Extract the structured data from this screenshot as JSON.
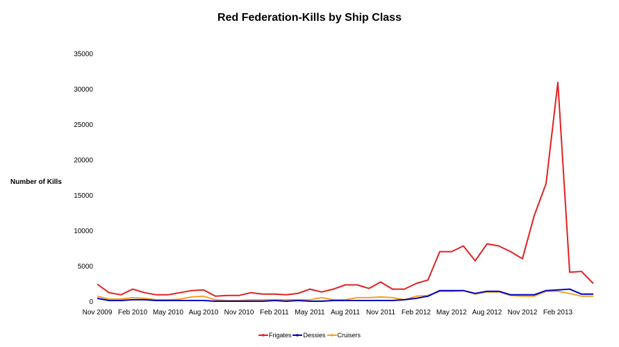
{
  "chart_data": {
    "type": "line",
    "title": "Red Federation-Kills by Ship Class",
    "ylabel": "Number of Kills",
    "xlabel": "",
    "ylim": [
      0,
      35000
    ],
    "yticks": [
      0,
      5000,
      10000,
      15000,
      20000,
      25000,
      30000,
      35000
    ],
    "xtick_labels": [
      "Nov 2009",
      "Feb 2010",
      "May 2010",
      "Aug 2010",
      "Nov 2010",
      "Feb 2011",
      "May 2011",
      "Aug 2011",
      "Nov 2011",
      "Feb 2012",
      "May 2012",
      "Aug 2012",
      "Nov 2012",
      "Feb 2013"
    ],
    "x": [
      "Nov 2009",
      "Dec 2009",
      "Jan 2010",
      "Feb 2010",
      "Mar 2010",
      "Apr 2010",
      "May 2010",
      "Jun 2010",
      "Jul 2010",
      "Aug 2010",
      "Sep 2010",
      "Oct 2010",
      "Nov 2010",
      "Dec 2010",
      "Jan 2011",
      "Feb 2011",
      "Mar 2011",
      "Apr 2011",
      "May 2011",
      "Jun 2011",
      "Jul 2011",
      "Aug 2011",
      "Sep 2011",
      "Oct 2011",
      "Nov 2011",
      "Dec 2011",
      "Jan 2012",
      "Feb 2012",
      "Mar 2012",
      "Apr 2012",
      "May 2012",
      "Jun 2012",
      "Jul 2012",
      "Aug 2012",
      "Sep 2012",
      "Oct 2012",
      "Nov 2012",
      "Dec 2012",
      "Jan 2013",
      "Feb 2013",
      "Mar 2013",
      "Apr 2013",
      "May 2013"
    ],
    "series": [
      {
        "name": "Frigates",
        "color": "#e02020",
        "values": [
          2500,
          1300,
          1000,
          1800,
          1300,
          1000,
          1000,
          1300,
          1600,
          1700,
          800,
          900,
          900,
          1300,
          1100,
          1100,
          1000,
          1200,
          1800,
          1400,
          1800,
          2400,
          2400,
          1900,
          2800,
          1800,
          1800,
          2600,
          3100,
          7100,
          7100,
          7900,
          5800,
          8200,
          7900,
          7100,
          6100,
          12200,
          16700,
          31000,
          4200,
          4300,
          2600
        ]
      },
      {
        "name": "Dessies",
        "color": "#0000c0",
        "values": [
          500,
          200,
          200,
          300,
          300,
          200,
          200,
          200,
          200,
          200,
          100,
          100,
          100,
          100,
          100,
          200,
          100,
          200,
          100,
          100,
          200,
          200,
          200,
          200,
          200,
          200,
          300,
          500,
          800,
          1600,
          1600,
          1600,
          1200,
          1500,
          1500,
          1000,
          1000,
          1000,
          1600,
          1700,
          1800,
          1100,
          1100
        ]
      },
      {
        "name": "Cruisers",
        "color": "#f5a020",
        "values": [
          800,
          400,
          400,
          600,
          500,
          300,
          300,
          400,
          700,
          800,
          300,
          200,
          200,
          300,
          300,
          300,
          300,
          300,
          300,
          600,
          300,
          300,
          600,
          600,
          700,
          600,
          300,
          800,
          900,
          1500,
          1500,
          1600,
          1100,
          1400,
          1400,
          900,
          800,
          800,
          1500,
          1500,
          1200,
          800,
          800
        ]
      }
    ],
    "legend_position": "bottom",
    "grid": false
  }
}
